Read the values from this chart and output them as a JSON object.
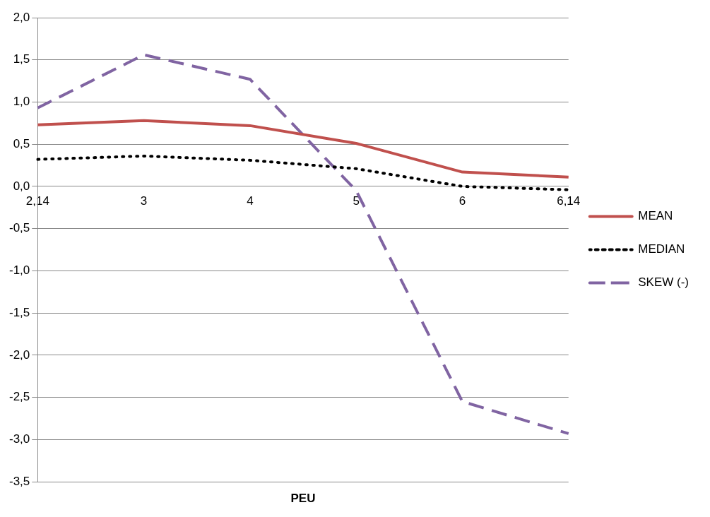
{
  "chart_data": {
    "type": "line",
    "xlabel": "PEU",
    "categories": [
      "2,14",
      "3",
      "4",
      "5",
      "6",
      "6,14"
    ],
    "series": [
      {
        "name": "MEAN",
        "color": "#c0504d",
        "line_style": "solid",
        "values": [
          0.73,
          0.78,
          0.72,
          0.51,
          0.17,
          0.11
        ]
      },
      {
        "name": "MEDIAN",
        "color": "#000000",
        "line_style": "dotted",
        "values": [
          0.32,
          0.36,
          0.31,
          0.21,
          0.0,
          -0.04
        ]
      },
      {
        "name": "SKEW (-)",
        "color": "#8064a2",
        "line_style": "dashed",
        "values": [
          0.93,
          1.56,
          1.27,
          -0.05,
          -2.55,
          -2.93
        ]
      }
    ],
    "ylim": [
      -3.5,
      2.0
    ],
    "yticks": [
      {
        "value": 2.0,
        "label": "2,0"
      },
      {
        "value": 1.5,
        "label": "1,5"
      },
      {
        "value": 1.0,
        "label": "1,0"
      },
      {
        "value": 0.5,
        "label": "0,5"
      },
      {
        "value": 0.0,
        "label": "0,0"
      },
      {
        "value": -0.5,
        "label": "-0,5"
      },
      {
        "value": -1.0,
        "label": "-1,0"
      },
      {
        "value": -1.5,
        "label": "-1,5"
      },
      {
        "value": -2.0,
        "label": "-2,0"
      },
      {
        "value": -2.5,
        "label": "-2,5"
      },
      {
        "value": -3.0,
        "label": "-3,0"
      },
      {
        "value": -3.5,
        "label": "-3,5"
      }
    ],
    "grid": "y",
    "legend": "right",
    "marker": "none"
  }
}
